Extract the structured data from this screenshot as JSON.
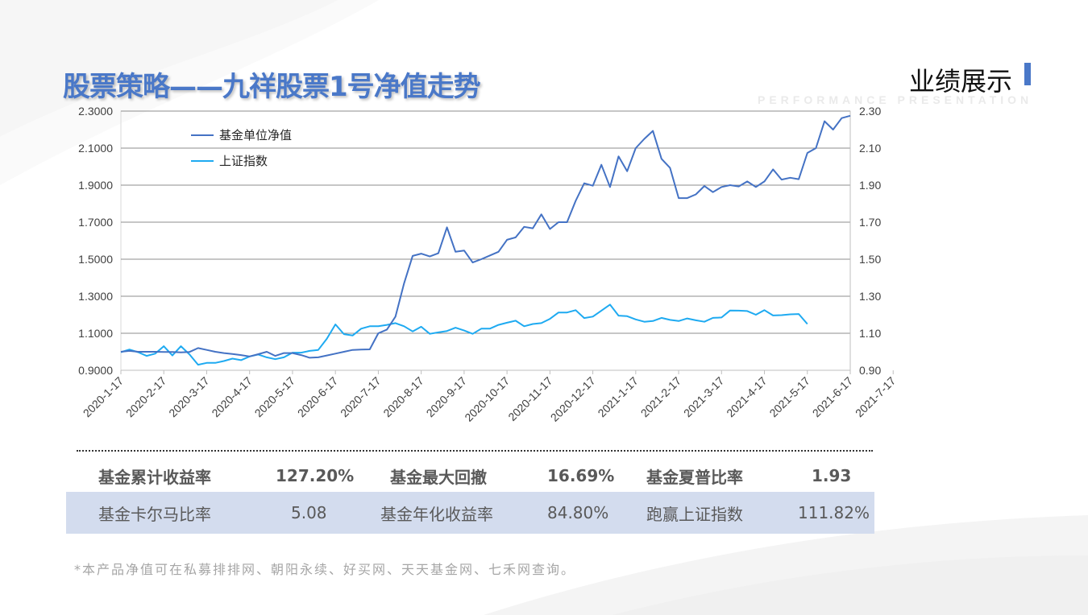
{
  "header": {
    "title": "股票策略——九祥股票1号净值走势",
    "section": "业绩展示",
    "section_sub": "PERFORMANCE PRESENTATION"
  },
  "colors": {
    "accent": "#4a78c8",
    "nav": "#4472c4",
    "index": "#1eaaf1",
    "band": "#d3dcee"
  },
  "chart_data": {
    "type": "line",
    "title": "",
    "xlabel": "",
    "ylabel": "",
    "legend_position": "top-left",
    "grid": true,
    "ylim": [
      0.9,
      2.3
    ],
    "y2lim": [
      0.9,
      2.3
    ],
    "y_ticks": [
      "2.3000",
      "2.1000",
      "1.9000",
      "1.7000",
      "1.5000",
      "1.3000",
      "1.1000",
      "0.9000"
    ],
    "y2_ticks": [
      "2.30",
      "2.10",
      "1.90",
      "1.70",
      "1.50",
      "1.30",
      "1.10",
      "0.90"
    ],
    "x_ticks": [
      "2020-1-17",
      "2020-2-17",
      "2020-3-17",
      "2020-4-17",
      "2020-5-17",
      "2020-6-17",
      "2020-7-17",
      "2020-8-17",
      "2020-9-17",
      "2020-10-17",
      "2020-11-17",
      "2020-12-17",
      "2021-1-17",
      "2021-2-17",
      "2021-3-17",
      "2021-4-17",
      "2021-5-17",
      "2021-6-17",
      "2021-7-17"
    ],
    "x_tick_index": [
      0,
      5,
      10,
      15,
      20,
      25,
      30,
      35,
      40,
      45,
      50,
      55,
      60,
      65,
      70,
      75,
      80,
      85,
      90
    ],
    "series": [
      {
        "name": "基金单位净值",
        "axis": "left",
        "color": "#4472c4",
        "values": [
          1.0,
          1.005,
          1.0,
          1.0,
          1.0,
          0.999,
          0.999,
          0.997,
          0.999,
          1.02,
          1.01,
          1.0,
          0.993,
          0.988,
          0.982,
          0.975,
          0.987,
          1.0,
          0.978,
          0.993,
          0.993,
          0.982,
          0.968,
          0.97,
          0.98,
          0.99,
          1.0,
          1.01,
          1.012,
          1.013,
          1.1,
          1.12,
          1.19,
          1.37,
          1.518,
          1.53,
          1.515,
          1.532,
          1.672,
          1.54,
          1.547,
          1.482,
          1.5,
          1.52,
          1.54,
          1.605,
          1.618,
          1.675,
          1.667,
          1.742,
          1.663,
          1.7,
          1.7,
          1.815,
          1.91,
          1.897,
          2.01,
          1.89,
          2.055,
          1.975,
          2.1,
          2.15,
          2.193,
          2.042,
          1.993,
          1.83,
          1.83,
          1.85,
          1.895,
          1.862,
          1.89,
          1.9,
          1.893,
          1.92,
          1.89,
          1.92,
          1.985,
          1.93,
          1.94,
          1.932,
          2.074,
          2.1,
          2.245,
          2.2,
          2.262,
          2.275
        ]
      },
      {
        "name": "上证指数",
        "axis": "right",
        "color": "#1eaaf1",
        "values": [
          0.998,
          1.012,
          0.998,
          0.978,
          0.99,
          1.03,
          0.98,
          1.03,
          0.985,
          0.93,
          0.94,
          0.94,
          0.95,
          0.963,
          0.955,
          0.975,
          0.985,
          0.97,
          0.96,
          0.97,
          0.995,
          0.995,
          1.005,
          1.01,
          1.07,
          1.148,
          1.095,
          1.088,
          1.125,
          1.138,
          1.138,
          1.145,
          1.155,
          1.138,
          1.11,
          1.135,
          1.097,
          1.105,
          1.112,
          1.13,
          1.115,
          1.097,
          1.125,
          1.125,
          1.145,
          1.157,
          1.168,
          1.138,
          1.15,
          1.155,
          1.178,
          1.212,
          1.212,
          1.225,
          1.182,
          1.19,
          1.222,
          1.255,
          1.195,
          1.192,
          1.175,
          1.162,
          1.166,
          1.183,
          1.172,
          1.166,
          1.18,
          1.17,
          1.162,
          1.183,
          1.185,
          1.223,
          1.222,
          1.22,
          1.2,
          1.225,
          1.196,
          1.198,
          1.202,
          1.204,
          1.15
        ]
      }
    ]
  },
  "stats": {
    "row1": [
      {
        "label": "基金累计收益率",
        "value": "127.20%"
      },
      {
        "label": "基金最大回撤",
        "value": "16.69%"
      },
      {
        "label": "基金夏普比率",
        "value": "1.93"
      }
    ],
    "row2": [
      {
        "label": "基金卡尔马比率",
        "value": "5.08"
      },
      {
        "label": "基金年化收益率",
        "value": "84.80%"
      },
      {
        "label": "跑赢上证指数",
        "value": "111.82%"
      }
    ]
  },
  "footnote": "*本产品净值可在私募排排网、朝阳永续、好买网、天天基金网、七禾网查询。"
}
